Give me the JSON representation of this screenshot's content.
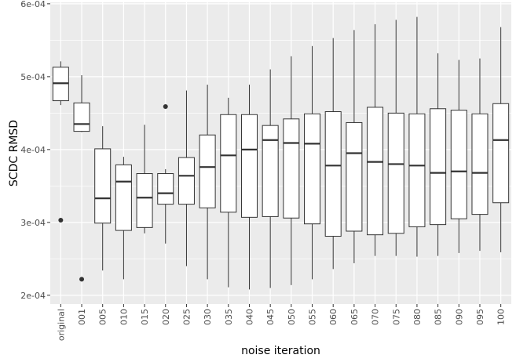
{
  "chart_data": {
    "type": "boxplot",
    "xlabel": "noise iteration",
    "ylabel": "SCDC RMSD",
    "ylim": [
      0.000188,
      0.000602
    ],
    "y_ticks": [
      0.0002,
      0.0003,
      0.0004,
      0.0005,
      0.0006
    ],
    "y_tick_labels": [
      "2e-04",
      "3e-04",
      "4e-04",
      "5e-04",
      "6e-04"
    ],
    "grid": true,
    "background_color": "#ebebeb",
    "grid_color": "#ffffff",
    "box_fill": "#ffffff",
    "box_stroke": "#333333",
    "categories": [
      "original",
      "001",
      "005",
      "010",
      "015",
      "020",
      "025",
      "030",
      "035",
      "040",
      "045",
      "050",
      "055",
      "060",
      "065",
      "070",
      "075",
      "080",
      "085",
      "090",
      "095",
      "100"
    ],
    "boxes": [
      {
        "min": 0.000461,
        "q1": 0.000467,
        "median": 0.000491,
        "q3": 0.000513,
        "max": 0.000521,
        "outliers": [
          0.000303
        ]
      },
      {
        "min": 0.000424,
        "q1": 0.000425,
        "median": 0.000435,
        "q3": 0.000464,
        "max": 0.000502,
        "outliers": [
          0.000222
        ]
      },
      {
        "min": 0.000234,
        "q1": 0.000299,
        "median": 0.000333,
        "q3": 0.000401,
        "max": 0.000432,
        "outliers": []
      },
      {
        "min": 0.000222,
        "q1": 0.000289,
        "median": 0.000356,
        "q3": 0.000379,
        "max": 0.00039,
        "outliers": []
      },
      {
        "min": 0.000285,
        "q1": 0.000293,
        "median": 0.000334,
        "q3": 0.000367,
        "max": 0.000434,
        "outliers": []
      },
      {
        "min": 0.000271,
        "q1": 0.000325,
        "median": 0.00034,
        "q3": 0.000367,
        "max": 0.000373,
        "outliers": [
          0.000459
        ]
      },
      {
        "min": 0.00024,
        "q1": 0.000325,
        "median": 0.000364,
        "q3": 0.000389,
        "max": 0.000481,
        "outliers": []
      },
      {
        "min": 0.000222,
        "q1": 0.00032,
        "median": 0.000376,
        "q3": 0.00042,
        "max": 0.000489,
        "outliers": []
      },
      {
        "min": 0.000211,
        "q1": 0.000314,
        "median": 0.000392,
        "q3": 0.000448,
        "max": 0.000471,
        "outliers": []
      },
      {
        "min": 0.000208,
        "q1": 0.000307,
        "median": 0.0004,
        "q3": 0.000448,
        "max": 0.000489,
        "outliers": []
      },
      {
        "min": 0.00021,
        "q1": 0.000308,
        "median": 0.000413,
        "q3": 0.000433,
        "max": 0.00051,
        "outliers": []
      },
      {
        "min": 0.000214,
        "q1": 0.000306,
        "median": 0.000409,
        "q3": 0.000442,
        "max": 0.000528,
        "outliers": []
      },
      {
        "min": 0.000222,
        "q1": 0.000298,
        "median": 0.000408,
        "q3": 0.000449,
        "max": 0.000542,
        "outliers": []
      },
      {
        "min": 0.000236,
        "q1": 0.000281,
        "median": 0.000378,
        "q3": 0.000452,
        "max": 0.000553,
        "outliers": []
      },
      {
        "min": 0.000244,
        "q1": 0.000288,
        "median": 0.000395,
        "q3": 0.000437,
        "max": 0.000564,
        "outliers": []
      },
      {
        "min": 0.000254,
        "q1": 0.000283,
        "median": 0.000383,
        "q3": 0.000458,
        "max": 0.000572,
        "outliers": []
      },
      {
        "min": 0.000254,
        "q1": 0.000285,
        "median": 0.00038,
        "q3": 0.00045,
        "max": 0.000578,
        "outliers": []
      },
      {
        "min": 0.000253,
        "q1": 0.000294,
        "median": 0.000378,
        "q3": 0.000449,
        "max": 0.000582,
        "outliers": []
      },
      {
        "min": 0.000254,
        "q1": 0.000297,
        "median": 0.000368,
        "q3": 0.000456,
        "max": 0.000532,
        "outliers": []
      },
      {
        "min": 0.000258,
        "q1": 0.000305,
        "median": 0.00037,
        "q3": 0.000454,
        "max": 0.000523,
        "outliers": []
      },
      {
        "min": 0.000261,
        "q1": 0.000311,
        "median": 0.000368,
        "q3": 0.000449,
        "max": 0.000525,
        "outliers": []
      },
      {
        "min": 0.000259,
        "q1": 0.000327,
        "median": 0.000413,
        "q3": 0.000463,
        "max": 0.000568,
        "outliers": []
      }
    ]
  }
}
